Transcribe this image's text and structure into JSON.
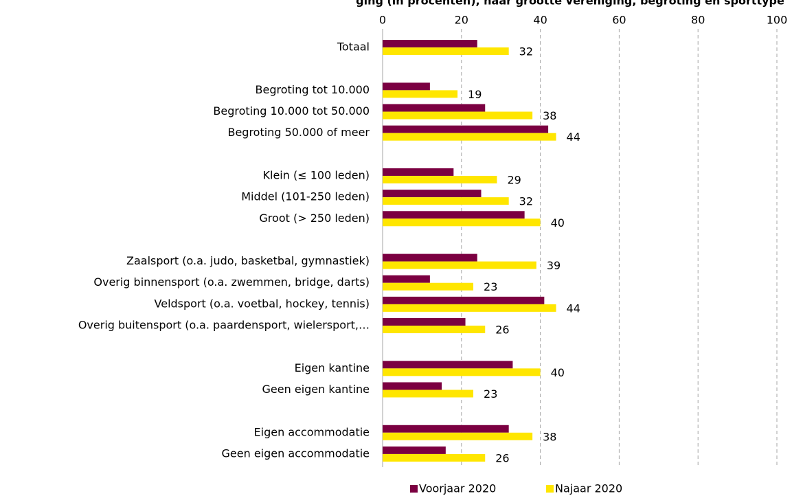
{
  "chart_data": {
    "type": "hbar",
    "title": "ging (in procenten), naar grootte vereniging, begroting en sporttype",
    "categories": [
      "Totaal",
      null,
      "Begroting tot 10.000",
      "Begroting 10.000 tot 50.000",
      "Begroting 50.000 of meer",
      null,
      "Klein (≤ 100 leden)",
      "Middel (101-250 leden)",
      "Groot (> 250 leden)",
      null,
      "Zaalsport (o.a. judo, basketbal, gymnastiek)",
      "Overig binnensport (o.a. zwemmen, bridge, darts)",
      "Veldsport (o.a. voetbal, hockey, tennis)",
      "Overig buitensport (o.a. paardensport, wielersport,…",
      null,
      "Eigen kantine",
      "Geen eigen kantine",
      null,
      "Eigen accommodatie",
      "Geen eigen accommodatie"
    ],
    "series": [
      {
        "name": "Voorjaar 2020",
        "color": "#7b0041",
        "values": [
          24,
          null,
          12,
          26,
          42,
          null,
          18,
          25,
          36,
          null,
          24,
          12,
          41,
          21,
          null,
          33,
          15,
          null,
          32,
          16
        ]
      },
      {
        "name": "Najaar 2020",
        "color": "#ffe600",
        "values": [
          32,
          null,
          19,
          38,
          44,
          null,
          29,
          32,
          40,
          null,
          39,
          23,
          44,
          26,
          null,
          40,
          23,
          null,
          38,
          26
        ]
      }
    ],
    "xlim": [
      0,
      100
    ],
    "xticks": [
      0,
      20,
      40,
      60,
      80,
      100
    ],
    "grid": true,
    "legend": "bottom"
  }
}
